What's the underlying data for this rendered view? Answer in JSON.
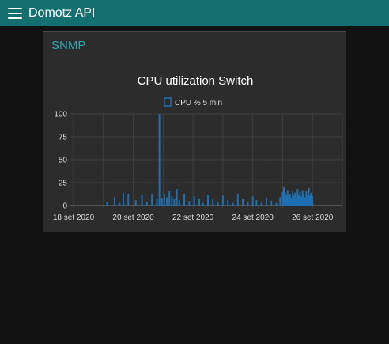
{
  "appbar": {
    "title": "Domotz API",
    "menu_icon": "hamburger-menu-icon",
    "color": "#146f6f"
  },
  "card": {
    "title": "SNMP"
  },
  "chart_data": {
    "type": "bar",
    "title": "CPU utilization Switch",
    "legend": {
      "position": "top",
      "items": [
        "CPU % 5 min"
      ]
    },
    "series": [
      {
        "name": "CPU % 5 min",
        "color": "#1f6fb2",
        "points": [
          [
            "2020-09-19T03:00",
            4
          ],
          [
            "2020-09-19T09:00",
            9
          ],
          [
            "2020-09-19T13:00",
            3
          ],
          [
            "2020-09-19T16:00",
            14
          ],
          [
            "2020-09-19T20:00",
            13
          ],
          [
            "2020-09-20T02:00",
            6
          ],
          [
            "2020-09-20T07:00",
            12
          ],
          [
            "2020-09-20T11:00",
            4
          ],
          [
            "2020-09-20T15:00",
            13
          ],
          [
            "2020-09-20T19:00",
            7
          ],
          [
            "2020-09-20T21:00",
            100
          ],
          [
            "2020-09-20T23:00",
            8
          ],
          [
            "2020-09-21T01:00",
            13
          ],
          [
            "2020-09-21T03:00",
            9
          ],
          [
            "2020-09-21T05:00",
            16
          ],
          [
            "2020-09-21T07:00",
            10
          ],
          [
            "2020-09-21T09:00",
            7
          ],
          [
            "2020-09-21T11:00",
            18
          ],
          [
            "2020-09-21T13:00",
            6
          ],
          [
            "2020-09-21T17:00",
            13
          ],
          [
            "2020-09-21T21:00",
            5
          ],
          [
            "2020-09-22T01:00",
            10
          ],
          [
            "2020-09-22T05:00",
            7
          ],
          [
            "2020-09-22T08:00",
            3
          ],
          [
            "2020-09-22T12:00",
            12
          ],
          [
            "2020-09-22T16:00",
            7
          ],
          [
            "2020-09-22T20:00",
            4
          ],
          [
            "2020-09-23T00:00",
            11
          ],
          [
            "2020-09-23T04:00",
            6
          ],
          [
            "2020-09-23T08:00",
            3
          ],
          [
            "2020-09-23T12:00",
            13
          ],
          [
            "2020-09-23T16:00",
            7
          ],
          [
            "2020-09-23T20:00",
            4
          ],
          [
            "2020-09-24T00:00",
            10
          ],
          [
            "2020-09-24T03:00",
            6
          ],
          [
            "2020-09-24T07:00",
            3
          ],
          [
            "2020-09-24T11:00",
            8
          ],
          [
            "2020-09-24T15:00",
            5
          ],
          [
            "2020-09-24T19:00",
            3
          ],
          [
            "2020-09-24T22:00",
            9
          ],
          [
            "2020-09-25T00:00",
            15
          ],
          [
            "2020-09-25T01:00",
            20
          ],
          [
            "2020-09-25T02:00",
            14
          ],
          [
            "2020-09-25T03:00",
            12
          ],
          [
            "2020-09-25T04:00",
            17
          ],
          [
            "2020-09-25T05:00",
            10
          ],
          [
            "2020-09-25T06:00",
            13
          ],
          [
            "2020-09-25T07:00",
            8
          ],
          [
            "2020-09-25T08:00",
            16
          ],
          [
            "2020-09-25T09:00",
            11
          ],
          [
            "2020-09-25T10:00",
            14
          ],
          [
            "2020-09-25T11:00",
            9
          ],
          [
            "2020-09-25T12:00",
            18
          ],
          [
            "2020-09-25T13:00",
            12
          ],
          [
            "2020-09-25T14:00",
            15
          ],
          [
            "2020-09-25T15:00",
            10
          ],
          [
            "2020-09-25T16:00",
            17
          ],
          [
            "2020-09-25T17:00",
            13
          ],
          [
            "2020-09-25T18:00",
            9
          ],
          [
            "2020-09-25T19:00",
            16
          ],
          [
            "2020-09-25T20:00",
            11
          ],
          [
            "2020-09-25T21:00",
            19
          ],
          [
            "2020-09-25T22:00",
            12
          ],
          [
            "2020-09-25T23:00",
            14
          ],
          [
            "2020-09-26T00:00",
            10
          ]
        ]
      }
    ],
    "x_axis": {
      "range": [
        "2020-09-18",
        "2020-09-27"
      ],
      "ticks": [
        "2020-09-18",
        "2020-09-20",
        "2020-09-22",
        "2020-09-24",
        "2020-09-26"
      ],
      "tick_labels": [
        "18 set 2020",
        "20 set 2020",
        "22 set 2020",
        "24 set 2020",
        "26 set 2020"
      ]
    },
    "y_axis": {
      "range": [
        0,
        100
      ],
      "ticks": [
        0,
        25,
        50,
        75,
        100
      ],
      "tick_labels": [
        "0",
        "25",
        "50",
        "75",
        "100"
      ]
    },
    "grid": true
  }
}
